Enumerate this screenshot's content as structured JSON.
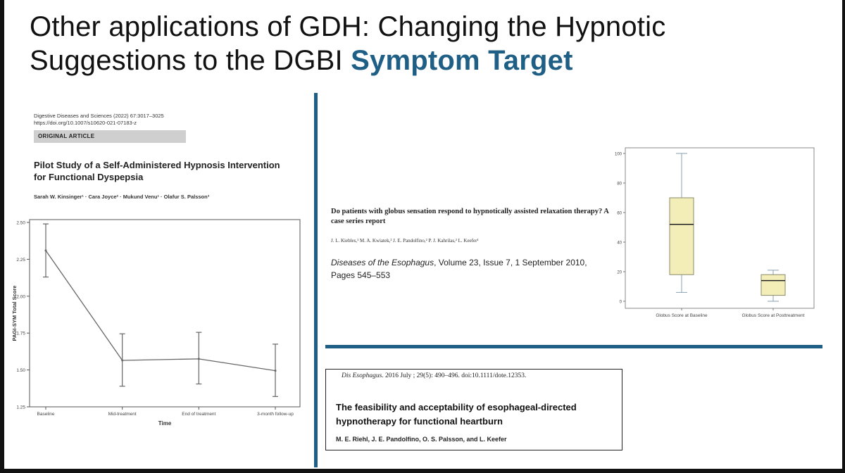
{
  "slide": {
    "title_part1": "Other applications of GDH: Changing the Hypnotic Suggestions to the DGBI ",
    "title_accent": "Symptom Target",
    "accent_color": "#1f5f86"
  },
  "article1": {
    "citation_line1": "Digestive Diseases and Sciences (2022) 67:3017–3025",
    "citation_line2": "https://doi.org/10.1007/s10620-021-07183-z",
    "type": "ORIGINAL ARTICLE",
    "title": "Pilot Study of a Self-Administered Hypnosis Intervention for Functional Dyspepsia",
    "authors": "Sarah W. Kinsinger¹ · Cara Joyce² · Mukund Venu¹ · Olafur S. Palsson³"
  },
  "article2": {
    "title": "Do patients with globus sensation respond to hypnotically assisted relaxation therapy? A case series report",
    "authors": "J. L. Kiebles,¹ M. A. Kwiatek,² J. E. Pandolfino,² P. J. Kahrilas,² L. Keefer¹",
    "journal_italic": "Diseases of the Esophagus",
    "journal_rest": ", Volume 23, Issue 7, 1 September 2010, Pages 545–553"
  },
  "article3": {
    "citation_italic": "Dis Esophagus",
    "citation_rest": ". 2016 July ; 29(5): 490–496. doi:10.1111/dote.12353.",
    "title": "The feasibility and acceptability of esophageal-directed hypnotherapy for functional heartburn",
    "authors": "M. E. Riehl, J. E. Pandolfino, O. S. Palsson, and L. Keefer"
  },
  "chart_data": [
    {
      "type": "line",
      "xlabel": "Time",
      "ylabel": "PAGI-SYM Total Score",
      "categories": [
        "Baseline",
        "Mid-treatment",
        "End of treatment",
        "3-month follow-up"
      ],
      "values": [
        2.31,
        1.565,
        1.575,
        1.495
      ],
      "error_low": [
        2.13,
        1.39,
        1.405,
        1.32
      ],
      "error_high": [
        2.49,
        1.745,
        1.755,
        1.675
      ],
      "yticks": [
        "1.25",
        "1.50",
        "1.75",
        "2.00",
        "2.25",
        "2.50"
      ],
      "ylim": [
        1.25,
        2.5
      ]
    },
    {
      "type": "box",
      "categories": [
        "Globus Score at Baseline",
        "Globus Score at Posttreatment"
      ],
      "boxes": [
        {
          "min": 6,
          "q1": 18,
          "median": 52,
          "q3": 70,
          "max": 100
        },
        {
          "min": 0,
          "q1": 4,
          "median": 14,
          "q3": 18,
          "max": 21
        }
      ],
      "yticks": [
        "0",
        "20",
        "40",
        "60",
        "80",
        "100"
      ],
      "ylim": [
        0,
        100
      ],
      "box_fill": "#f3edb8"
    }
  ]
}
